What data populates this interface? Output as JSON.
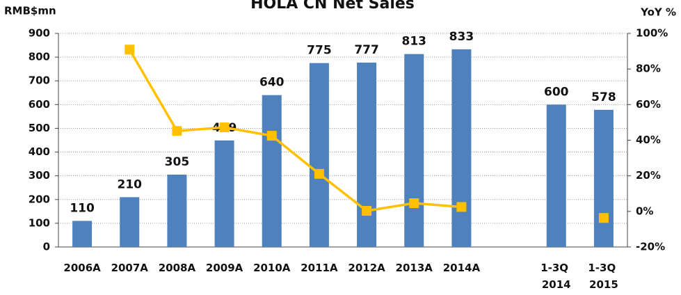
{
  "chart_data": {
    "type": "bar",
    "title": "HOLA CN Net Sales",
    "y_label": "RMB$mn",
    "y2_label": "YoY %",
    "categories": [
      "2006A",
      "2007A",
      "2008A",
      "2009A",
      "2010A",
      "2011A",
      "2012A",
      "2013A",
      "2014A",
      null,
      "1-3Q 2014",
      "1-3Q 2015"
    ],
    "series": [
      {
        "name": "Net Sales",
        "type": "bar",
        "color": "#4f81bd",
        "values": [
          110,
          210,
          305,
          449,
          640,
          775,
          777,
          813,
          833,
          null,
          600,
          578
        ]
      },
      {
        "name": "YoY",
        "type": "line",
        "axis": "y2",
        "color": "#ffc000",
        "values": [
          null,
          90.9,
          45.2,
          47.2,
          42.5,
          21.1,
          0.3,
          4.6,
          2.5,
          null,
          null,
          -3.7
        ]
      }
    ],
    "ylim": [
      0,
      900
    ],
    "yticks": [
      0,
      100,
      200,
      300,
      400,
      500,
      600,
      700,
      800,
      900
    ],
    "y2lim": [
      -20,
      100
    ],
    "y2ticks": [
      {
        "value": -20,
        "label": "-20%"
      },
      {
        "value": 0,
        "label": "0%"
      },
      {
        "value": 20,
        "label": "20%"
      },
      {
        "value": 40,
        "label": "40%"
      },
      {
        "value": 60,
        "label": "60%"
      },
      {
        "value": 80,
        "label": "80%"
      },
      {
        "value": 100,
        "label": "100%"
      }
    ],
    "grid": true
  }
}
